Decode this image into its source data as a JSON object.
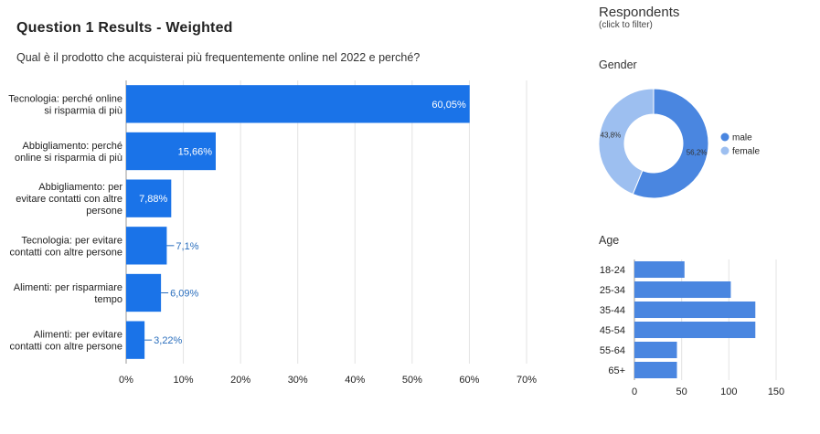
{
  "header": {
    "title": "Question 1 Results - Weighted",
    "question": "Qual è il prodotto che acquisterai più frequentemente online nel 2022 e perché?"
  },
  "sidebar": {
    "title": "Respondents",
    "subtitle": "(click to filter)",
    "gender_title": "Gender",
    "age_title": "Age"
  },
  "colors": {
    "bar": "#1a73e8",
    "male": "#4a86e0",
    "female": "#9dbff0",
    "grid": "#e3e3e3",
    "age_bar": "#4a86e0"
  },
  "chart_data": [
    {
      "type": "bar",
      "orientation": "horizontal",
      "categories": [
        [
          "Tecnologia: perché online",
          "si risparmia di più"
        ],
        [
          "Abbigliamento: perché",
          "online si risparmia di più"
        ],
        [
          "Abbigliamento: per",
          "evitare contatti con altre",
          "persone"
        ],
        [
          "Tecnologia: per evitare",
          "contatti con altre persone"
        ],
        [
          "Alimenti: per risparmiare",
          "tempo"
        ],
        [
          "Alimenti: per evitare",
          "contatti con altre persone"
        ]
      ],
      "values": [
        60.05,
        15.66,
        7.88,
        7.1,
        6.09,
        3.22
      ],
      "value_labels": [
        "60,05%",
        "15,66%",
        "7,88%",
        "7,1%",
        "6,09%",
        "3,22%"
      ],
      "xlim": [
        0,
        70
      ],
      "x_ticks": [
        0,
        10,
        20,
        30,
        40,
        50,
        60,
        70
      ],
      "x_tick_labels": [
        "0%",
        "10%",
        "20%",
        "30%",
        "40%",
        "50%",
        "60%",
        "70%"
      ],
      "grid": true
    },
    {
      "type": "pie",
      "donut": true,
      "labels": [
        "male",
        "female"
      ],
      "values": [
        56.2,
        43.8
      ],
      "value_labels": [
        "56,2%",
        "43,8%"
      ],
      "legend": "right"
    },
    {
      "type": "bar",
      "orientation": "horizontal",
      "categories": [
        "18-24",
        "25-34",
        "35-44",
        "45-54",
        "55-64",
        "65+"
      ],
      "values": [
        53,
        102,
        128,
        128,
        45,
        45
      ],
      "xlim": [
        0,
        150
      ],
      "x_ticks": [
        0,
        50,
        100,
        150
      ],
      "x_tick_labels": [
        "0",
        "50",
        "100",
        "150"
      ],
      "grid": true
    }
  ]
}
